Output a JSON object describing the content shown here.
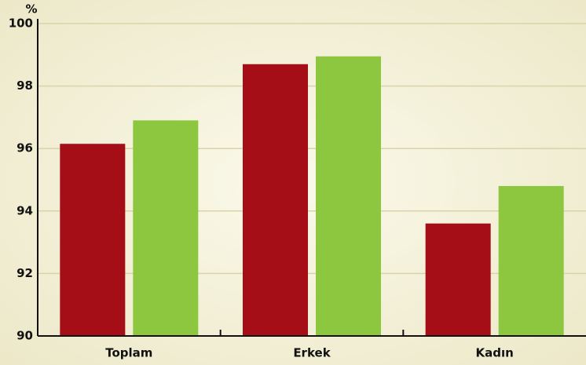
{
  "chart_data": {
    "type": "bar",
    "y_label": "%",
    "categories": [
      "Toplam",
      "Erkek",
      "Kadın"
    ],
    "series": [
      {
        "color": "#a50e16",
        "values": [
          96.15,
          98.7,
          93.6
        ]
      },
      {
        "color": "#8dc63f",
        "values": [
          96.9,
          98.95,
          94.8
        ]
      }
    ],
    "ylim": [
      90,
      100
    ],
    "yticks": [
      90,
      92,
      94,
      96,
      98,
      100
    ],
    "grid": true
  }
}
